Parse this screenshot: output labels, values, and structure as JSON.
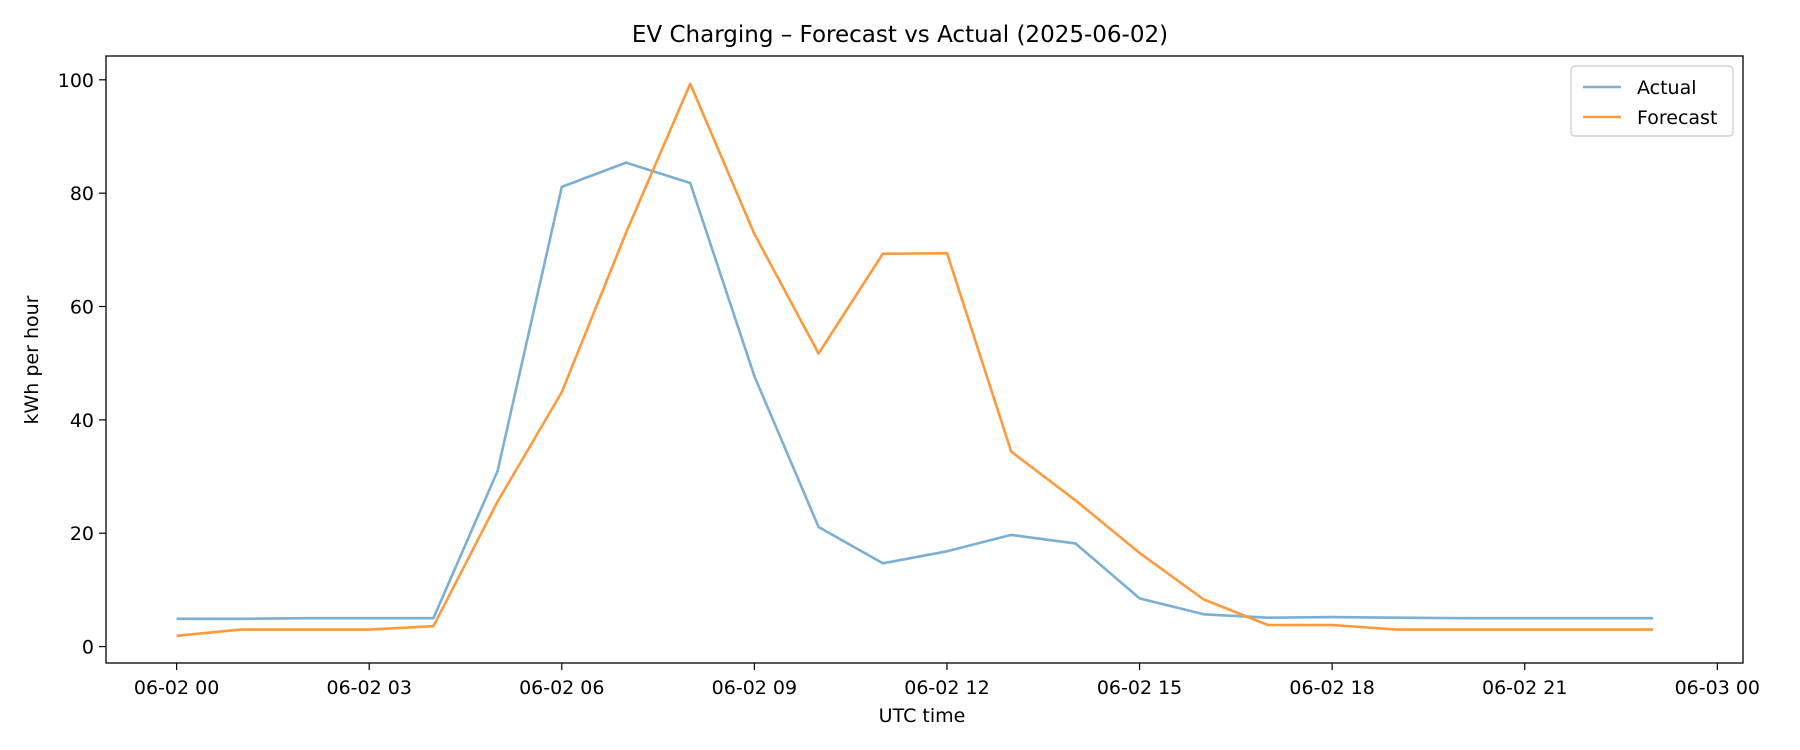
{
  "chart_data": {
    "type": "line",
    "title": "EV Charging – Forecast vs Actual (2025-06-02)",
    "xlabel": "UTC time",
    "ylabel": "kWh per hour",
    "x_hours": [
      0,
      1,
      2,
      3,
      4,
      5,
      6,
      7,
      8,
      9,
      10,
      11,
      12,
      13,
      14,
      15,
      16,
      17,
      18,
      19,
      20,
      21,
      22,
      23
    ],
    "xlim": [
      -1.1,
      24.4
    ],
    "ylim": [
      -2.9,
      104.2
    ],
    "x_ticks": [
      {
        "value": 0,
        "label": "06-02 00"
      },
      {
        "value": 3,
        "label": "06-02 03"
      },
      {
        "value": 6,
        "label": "06-02 06"
      },
      {
        "value": 9,
        "label": "06-02 09"
      },
      {
        "value": 12,
        "label": "06-02 12"
      },
      {
        "value": 15,
        "label": "06-02 15"
      },
      {
        "value": 18,
        "label": "06-02 18"
      },
      {
        "value": 21,
        "label": "06-02 21"
      },
      {
        "value": 24,
        "label": "06-03 00"
      }
    ],
    "y_ticks": [
      {
        "value": 0,
        "label": "0"
      },
      {
        "value": 20,
        "label": "20"
      },
      {
        "value": 40,
        "label": "40"
      },
      {
        "value": 60,
        "label": "60"
      },
      {
        "value": 80,
        "label": "80"
      },
      {
        "value": 100,
        "label": "100"
      }
    ],
    "legend_position": "top-right",
    "series": [
      {
        "name": "Actual",
        "color": "#7bafd4",
        "values": [
          4.9,
          4.9,
          5.0,
          5.0,
          5.0,
          31.0,
          81.1,
          85.4,
          81.8,
          47.7,
          21.1,
          14.7,
          16.8,
          19.7,
          18.2,
          8.5,
          5.7,
          5.1,
          5.2,
          5.1,
          5.0,
          5.0,
          5.0,
          5.0
        ]
      },
      {
        "name": "Forecast",
        "color": "#ff9a3c",
        "values": [
          1.9,
          3.0,
          3.0,
          3.0,
          3.6,
          25.6,
          44.9,
          73.0,
          99.3,
          72.8,
          51.7,
          69.3,
          69.4,
          34.4,
          25.8,
          16.5,
          8.3,
          3.8,
          3.8,
          3.0,
          3.0,
          3.0,
          3.0,
          3.0
        ]
      }
    ]
  }
}
